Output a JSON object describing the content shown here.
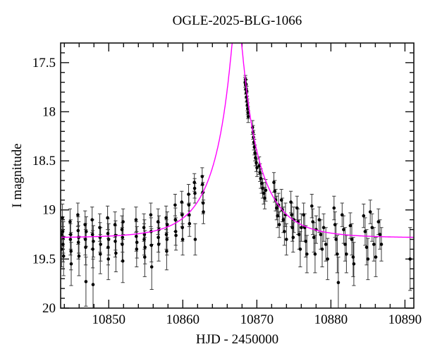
{
  "page": {
    "background": "#ffffff"
  },
  "chart_data": {
    "type": "scatter",
    "title": "OGLE-2025-BLG-1066",
    "xlabel": "HJD - 2450000",
    "ylabel": "I magnitude",
    "xlim": [
      10843.5,
      10891.2
    ],
    "ylim": [
      20.0,
      17.3
    ],
    "y_inverted": true,
    "grid": false,
    "x_major_ticks": [
      10850,
      10860,
      10870,
      10880,
      10890
    ],
    "x_tick_labels": [
      "10850",
      "10860",
      "10870",
      "10880",
      "10890"
    ],
    "x_minor_step": 2,
    "y_major_ticks": [
      17.5,
      18.0,
      18.5,
      19.0,
      19.5,
      20.0
    ],
    "y_tick_labels": [
      "17.5",
      "18",
      "18.5",
      "19",
      "19.5",
      "20"
    ],
    "y_minor_step": 0.1,
    "point_color": "#000000",
    "errorbar_color": "#3a3a3a",
    "model_color": "#ff00ff",
    "frame_color": "#111111",
    "model": {
      "type": "paczynski",
      "t0": 10867.3,
      "tE": 5.8,
      "u0": 0.12,
      "I0": 19.285
    },
    "points": [
      [
        10843.58,
        19.25,
        0.15
      ],
      [
        10843.62,
        19.4,
        0.18
      ],
      [
        10843.75,
        19.08,
        0.14
      ],
      [
        10843.79,
        19.22,
        0.15
      ],
      [
        10843.82,
        19.35,
        0.18
      ],
      [
        10843.86,
        19.28,
        0.16
      ],
      [
        10843.9,
        19.47,
        0.2
      ],
      [
        10844.78,
        19.12,
        0.13
      ],
      [
        10844.82,
        19.3,
        0.16
      ],
      [
        10844.86,
        19.25,
        0.15
      ],
      [
        10844.9,
        19.42,
        0.19
      ],
      [
        10844.93,
        19.55,
        0.22
      ],
      [
        10845.82,
        19.05,
        0.12
      ],
      [
        10845.86,
        19.21,
        0.14
      ],
      [
        10845.9,
        19.33,
        0.17
      ],
      [
        10845.94,
        19.28,
        0.16
      ],
      [
        10845.98,
        19.47,
        0.2
      ],
      [
        10846.8,
        19.15,
        0.14
      ],
      [
        10846.84,
        19.3,
        0.16
      ],
      [
        10846.88,
        19.38,
        0.18
      ],
      [
        10846.92,
        19.73,
        0.25
      ],
      [
        10846.96,
        19.22,
        0.15
      ],
      [
        10847.76,
        19.1,
        0.13
      ],
      [
        10847.8,
        19.25,
        0.15
      ],
      [
        10847.84,
        19.4,
        0.19
      ],
      [
        10847.88,
        19.76,
        0.26
      ],
      [
        10847.92,
        19.32,
        0.16
      ],
      [
        10848.78,
        19.18,
        0.14
      ],
      [
        10848.82,
        19.28,
        0.15
      ],
      [
        10848.86,
        19.45,
        0.2
      ],
      [
        10848.9,
        19.35,
        0.17
      ],
      [
        10849.84,
        19.08,
        0.12
      ],
      [
        10849.88,
        19.24,
        0.15
      ],
      [
        10849.92,
        19.38,
        0.18
      ],
      [
        10849.95,
        19.5,
        0.21
      ],
      [
        10849.98,
        19.3,
        0.16
      ],
      [
        10850.84,
        19.15,
        0.13
      ],
      [
        10850.88,
        19.32,
        0.16
      ],
      [
        10850.92,
        19.26,
        0.15
      ],
      [
        10850.96,
        19.44,
        0.19
      ],
      [
        10851.78,
        19.2,
        0.14
      ],
      [
        10851.82,
        19.35,
        0.17
      ],
      [
        10851.86,
        19.28,
        0.15
      ],
      [
        10851.9,
        19.52,
        0.22
      ],
      [
        10851.94,
        19.12,
        0.13
      ],
      [
        10853.68,
        19.1,
        0.13
      ],
      [
        10853.72,
        19.27,
        0.15
      ],
      [
        10853.76,
        19.4,
        0.18
      ],
      [
        10853.8,
        19.33,
        0.16
      ],
      [
        10854.74,
        19.18,
        0.14
      ],
      [
        10854.78,
        19.3,
        0.16
      ],
      [
        10854.82,
        19.25,
        0.15
      ],
      [
        10854.86,
        19.48,
        0.2
      ],
      [
        10854.9,
        19.38,
        0.17
      ],
      [
        10855.68,
        19.05,
        0.12
      ],
      [
        10855.72,
        19.22,
        0.14
      ],
      [
        10855.76,
        19.36,
        0.17
      ],
      [
        10855.8,
        19.58,
        0.23
      ],
      [
        10856.66,
        19.12,
        0.13
      ],
      [
        10856.7,
        19.28,
        0.15
      ],
      [
        10856.74,
        19.35,
        0.17
      ],
      [
        10856.78,
        19.2,
        0.14
      ],
      [
        10857.74,
        19.08,
        0.12
      ],
      [
        10857.78,
        19.25,
        0.15
      ],
      [
        10857.82,
        19.42,
        0.19
      ],
      [
        10857.86,
        19.3,
        0.16
      ],
      [
        10857.9,
        19.15,
        0.13
      ],
      [
        10858.96,
        18.95,
        0.11
      ],
      [
        10859.0,
        19.1,
        0.12
      ],
      [
        10859.04,
        19.22,
        0.14
      ],
      [
        10859.08,
        19.26,
        0.15
      ],
      [
        10859.86,
        18.92,
        0.11
      ],
      [
        10859.9,
        19.05,
        0.12
      ],
      [
        10859.94,
        19.18,
        0.14
      ],
      [
        10859.98,
        19.3,
        0.16
      ],
      [
        10860.78,
        18.84,
        0.1
      ],
      [
        10860.82,
        18.95,
        0.11
      ],
      [
        10860.86,
        19.05,
        0.12
      ],
      [
        10860.9,
        19.14,
        0.13
      ],
      [
        10861.56,
        18.72,
        0.09
      ],
      [
        10861.6,
        18.78,
        0.1
      ],
      [
        10861.64,
        18.83,
        0.1
      ],
      [
        10861.68,
        19.3,
        0.16
      ],
      [
        10862.62,
        18.66,
        0.09
      ],
      [
        10862.66,
        18.74,
        0.09
      ],
      [
        10862.7,
        18.82,
        0.1
      ],
      [
        10862.74,
        18.93,
        0.11
      ],
      [
        10862.78,
        19.02,
        0.12
      ],
      [
        10868.42,
        17.7,
        0.05
      ],
      [
        10868.45,
        17.67,
        0.04
      ],
      [
        10868.48,
        17.73,
        0.05
      ],
      [
        10868.51,
        17.77,
        0.05
      ],
      [
        10868.54,
        17.72,
        0.05
      ],
      [
        10868.58,
        17.81,
        0.05
      ],
      [
        10868.61,
        17.85,
        0.05
      ],
      [
        10868.64,
        17.79,
        0.05
      ],
      [
        10868.68,
        17.89,
        0.05
      ],
      [
        10868.72,
        17.93,
        0.06
      ],
      [
        10868.76,
        17.97,
        0.06
      ],
      [
        10868.8,
        18.01,
        0.06
      ],
      [
        10868.84,
        18.05,
        0.06
      ],
      [
        10869.42,
        18.16,
        0.07
      ],
      [
        10869.48,
        18.21,
        0.07
      ],
      [
        10869.54,
        18.26,
        0.07
      ],
      [
        10869.6,
        18.31,
        0.08
      ],
      [
        10869.66,
        18.36,
        0.08
      ],
      [
        10869.74,
        18.42,
        0.08
      ],
      [
        10869.82,
        18.47,
        0.08
      ],
      [
        10869.92,
        18.52,
        0.09
      ],
      [
        10870.02,
        18.57,
        0.09
      ],
      [
        10870.32,
        18.55,
        0.09
      ],
      [
        10870.42,
        18.62,
        0.09
      ],
      [
        10870.52,
        18.68,
        0.1
      ],
      [
        10870.64,
        18.73,
        0.1
      ],
      [
        10870.78,
        18.78,
        0.1
      ],
      [
        10870.92,
        18.83,
        0.11
      ],
      [
        10871.06,
        18.88,
        0.11
      ],
      [
        10871.2,
        18.8,
        0.11
      ],
      [
        10872.3,
        18.72,
        0.1
      ],
      [
        10872.42,
        18.81,
        0.11
      ],
      [
        10872.54,
        18.9,
        0.11
      ],
      [
        10872.66,
        18.98,
        0.12
      ],
      [
        10872.8,
        19.06,
        0.12
      ],
      [
        10872.92,
        18.95,
        0.12
      ],
      [
        10873.02,
        19.15,
        0.13
      ],
      [
        10873.32,
        18.9,
        0.11
      ],
      [
        10873.44,
        19.0,
        0.12
      ],
      [
        10873.58,
        19.1,
        0.13
      ],
      [
        10873.72,
        19.22,
        0.14
      ],
      [
        10873.86,
        19.05,
        0.12
      ],
      [
        10874.0,
        19.3,
        0.16
      ],
      [
        10874.6,
        18.92,
        0.11
      ],
      [
        10874.7,
        19.05,
        0.12
      ],
      [
        10874.8,
        19.18,
        0.14
      ],
      [
        10874.9,
        19.28,
        0.15
      ],
      [
        10875.0,
        19.1,
        0.13
      ],
      [
        10875.42,
        18.98,
        0.12
      ],
      [
        10875.56,
        19.12,
        0.13
      ],
      [
        10875.7,
        19.25,
        0.15
      ],
      [
        10875.86,
        19.4,
        0.18
      ],
      [
        10876.0,
        19.18,
        0.14
      ],
      [
        10876.32,
        19.05,
        0.12
      ],
      [
        10876.46,
        19.18,
        0.14
      ],
      [
        10876.6,
        19.32,
        0.16
      ],
      [
        10876.76,
        19.45,
        0.19
      ],
      [
        10877.42,
        18.96,
        0.12
      ],
      [
        10877.56,
        19.12,
        0.13
      ],
      [
        10877.7,
        19.28,
        0.15
      ],
      [
        10877.86,
        19.45,
        0.19
      ],
      [
        10878.0,
        19.2,
        0.14
      ],
      [
        10878.42,
        19.1,
        0.13
      ],
      [
        10878.62,
        19.25,
        0.15
      ],
      [
        10878.82,
        19.4,
        0.18
      ],
      [
        10879.02,
        19.18,
        0.14
      ],
      [
        10879.32,
        19.35,
        0.17
      ],
      [
        10879.56,
        19.5,
        0.21
      ],
      [
        10880.42,
        18.98,
        0.12
      ],
      [
        10880.56,
        19.15,
        0.13
      ],
      [
        10880.7,
        19.3,
        0.16
      ],
      [
        10880.86,
        19.45,
        0.19
      ],
      [
        10881.0,
        19.74,
        0.26
      ],
      [
        10881.52,
        19.05,
        0.12
      ],
      [
        10881.72,
        19.2,
        0.14
      ],
      [
        10881.92,
        19.35,
        0.17
      ],
      [
        10882.1,
        19.45,
        0.19
      ],
      [
        10882.62,
        19.16,
        0.13
      ],
      [
        10882.82,
        19.3,
        0.16
      ],
      [
        10883.0,
        19.48,
        0.2
      ],
      [
        10883.1,
        19.55,
        0.22
      ],
      [
        10884.42,
        19.06,
        0.12
      ],
      [
        10884.62,
        19.22,
        0.14
      ],
      [
        10884.82,
        19.38,
        0.18
      ],
      [
        10885.0,
        19.5,
        0.21
      ],
      [
        10885.32,
        19.02,
        0.12
      ],
      [
        10885.56,
        19.18,
        0.14
      ],
      [
        10885.8,
        19.35,
        0.17
      ],
      [
        10886.06,
        19.48,
        0.2
      ],
      [
        10886.42,
        19.12,
        0.13
      ],
      [
        10886.62,
        19.25,
        0.15
      ],
      [
        10886.82,
        19.35,
        0.17
      ],
      [
        10890.7,
        19.5,
        0.32
      ]
    ]
  }
}
